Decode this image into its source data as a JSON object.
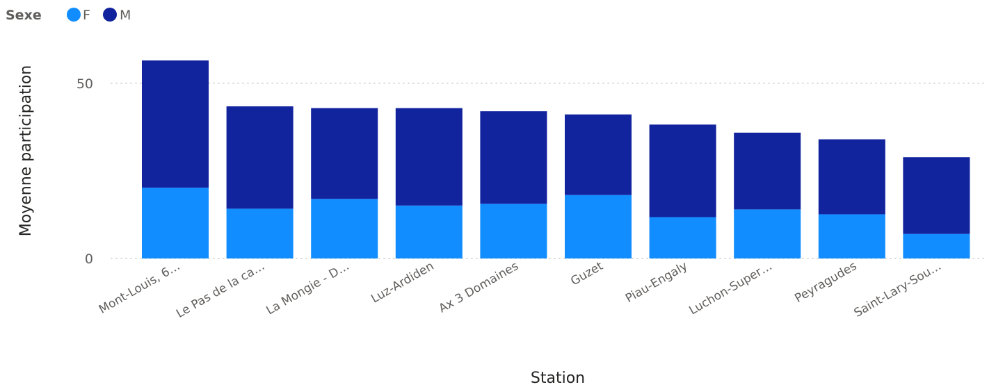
{
  "legend": {
    "title": "Sexe",
    "items": [
      {
        "label": "F",
        "color": "#118DFF"
      },
      {
        "label": "M",
        "color": "#12239E"
      }
    ]
  },
  "chart_data": {
    "type": "bar",
    "stacked": true,
    "categories": [
      "Mont-Louis, 6…",
      "Le Pas de la ca…",
      "La Mongie - D…",
      "Luz-Ardiden",
      "Ax 3 Domaines",
      "Guzet",
      "Piau-Engaly",
      "Luchon-Super…",
      "Peyragudes",
      "Saint-Lary-Sou…"
    ],
    "series": [
      {
        "name": "F",
        "color": "#118DFF",
        "values": [
          20.2,
          14.2,
          17,
          15.1,
          15.6,
          18.1,
          11.8,
          14,
          12.6,
          7
        ]
      },
      {
        "name": "M",
        "color": "#12239E",
        "values": [
          36.3,
          29.2,
          25.9,
          27.8,
          26.4,
          23,
          26.4,
          21.9,
          21.4,
          21.9
        ]
      }
    ],
    "xlabel": "Station",
    "ylabel": "Moyenne participation",
    "ylim": [
      0,
      56.5
    ],
    "yticks": [
      0,
      50
    ],
    "legend_position": "top-left",
    "grid": true
  }
}
